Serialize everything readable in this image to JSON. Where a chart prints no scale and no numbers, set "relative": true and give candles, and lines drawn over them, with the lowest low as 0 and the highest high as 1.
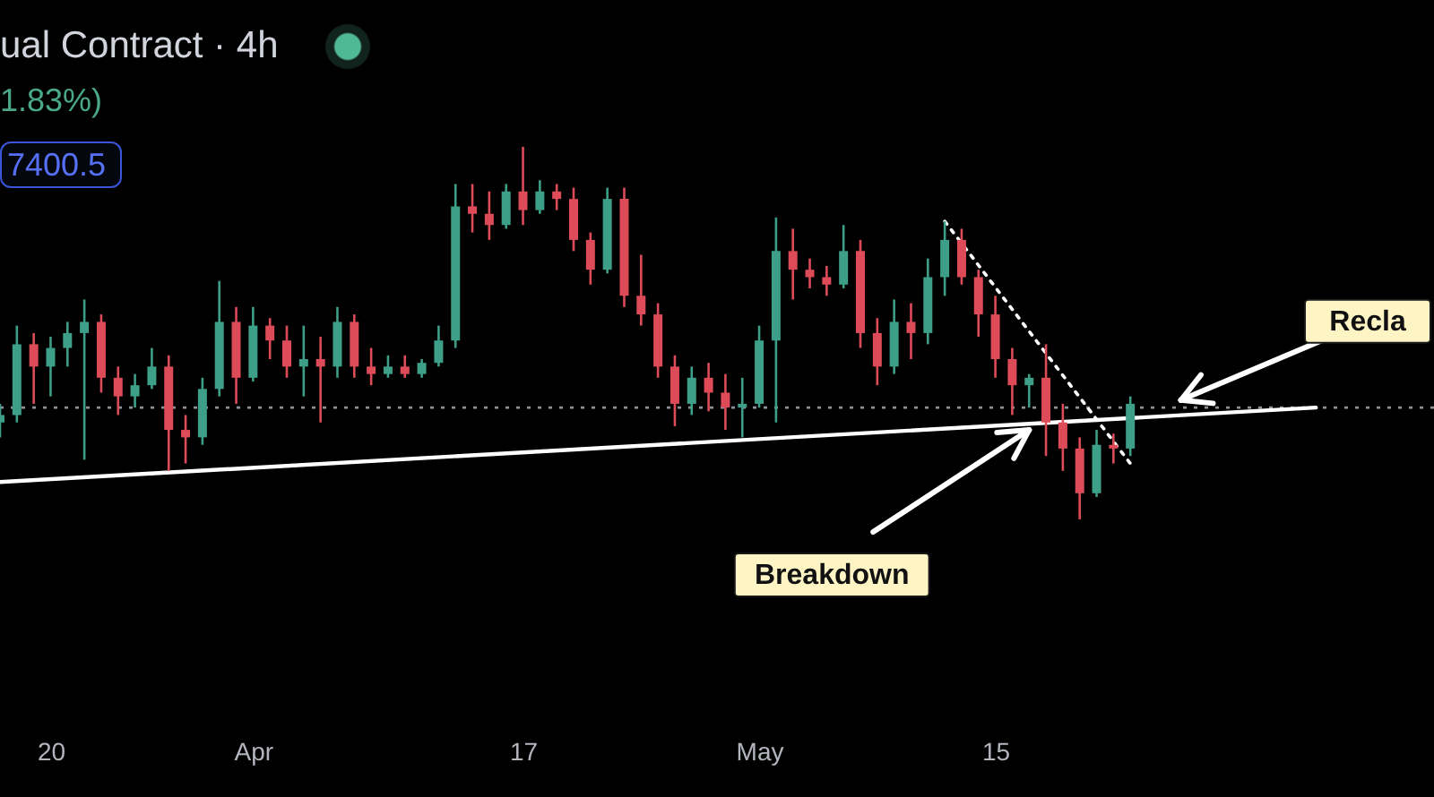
{
  "chart_data": {
    "type": "candlestick",
    "title": "ual Contract · 4h",
    "subtitle": "1.83%)",
    "relative": true,
    "x": [
      "--03-17",
      "--03-18",
      "--03-19",
      "--03-20",
      "--03-21",
      "--03-22",
      "--03-23",
      "--03-24",
      "--03-25",
      "--03-26",
      "--03-27",
      "--03-28",
      "--03-29",
      "--03-30",
      "--03-31",
      "--04-01",
      "--04-02",
      "--04-03",
      "--04-04",
      "--04-05",
      "--04-06",
      "--04-07",
      "--04-08",
      "--04-09",
      "--04-10",
      "--04-11",
      "--04-12",
      "--04-13",
      "--04-14",
      "--04-15",
      "--04-16",
      "--04-17",
      "--04-18",
      "--04-19",
      "--04-20",
      "--04-21",
      "--04-22",
      "--04-23",
      "--04-24",
      "--04-25",
      "--04-26",
      "--04-27",
      "--04-28",
      "--04-29",
      "--04-30",
      "--05-01",
      "--05-02",
      "--05-03",
      "--05-04",
      "--05-05",
      "--05-06",
      "--05-07",
      "--05-08",
      "--05-09",
      "--05-10",
      "--05-11",
      "--05-12",
      "--05-13",
      "--05-14",
      "--05-15",
      "--05-16",
      "--05-17",
      "--05-18",
      "--05-19",
      "--05-20",
      "--05-21",
      "--05-22",
      "--05-23"
    ],
    "ohlc": [
      [
        0.26,
        0.31,
        0.22,
        0.28
      ],
      [
        0.28,
        0.52,
        0.26,
        0.47
      ],
      [
        0.47,
        0.5,
        0.31,
        0.41
      ],
      [
        0.41,
        0.49,
        0.33,
        0.46
      ],
      [
        0.46,
        0.53,
        0.41,
        0.5
      ],
      [
        0.5,
        0.59,
        0.16,
        0.53
      ],
      [
        0.53,
        0.55,
        0.34,
        0.38
      ],
      [
        0.38,
        0.41,
        0.28,
        0.33
      ],
      [
        0.33,
        0.39,
        0.3,
        0.36
      ],
      [
        0.36,
        0.46,
        0.35,
        0.41
      ],
      [
        0.41,
        0.44,
        0.13,
        0.24
      ],
      [
        0.24,
        0.28,
        0.15,
        0.22
      ],
      [
        0.22,
        0.38,
        0.2,
        0.35
      ],
      [
        0.35,
        0.64,
        0.33,
        0.53
      ],
      [
        0.53,
        0.57,
        0.31,
        0.38
      ],
      [
        0.38,
        0.57,
        0.37,
        0.52
      ],
      [
        0.52,
        0.54,
        0.43,
        0.48
      ],
      [
        0.48,
        0.52,
        0.38,
        0.41
      ],
      [
        0.41,
        0.52,
        0.33,
        0.43
      ],
      [
        0.43,
        0.49,
        0.26,
        0.41
      ],
      [
        0.41,
        0.57,
        0.38,
        0.53
      ],
      [
        0.53,
        0.55,
        0.38,
        0.41
      ],
      [
        0.41,
        0.46,
        0.36,
        0.39
      ],
      [
        0.39,
        0.44,
        0.38,
        0.41
      ],
      [
        0.41,
        0.44,
        0.38,
        0.39
      ],
      [
        0.39,
        0.43,
        0.38,
        0.42
      ],
      [
        0.42,
        0.52,
        0.41,
        0.48
      ],
      [
        0.48,
        0.9,
        0.46,
        0.84
      ],
      [
        0.84,
        0.9,
        0.77,
        0.82
      ],
      [
        0.82,
        0.88,
        0.75,
        0.79
      ],
      [
        0.79,
        0.9,
        0.78,
        0.88
      ],
      [
        0.88,
        1.0,
        0.79,
        0.83
      ],
      [
        0.83,
        0.91,
        0.82,
        0.88
      ],
      [
        0.88,
        0.9,
        0.83,
        0.86
      ],
      [
        0.86,
        0.89,
        0.72,
        0.75
      ],
      [
        0.75,
        0.77,
        0.63,
        0.67
      ],
      [
        0.67,
        0.89,
        0.66,
        0.86
      ],
      [
        0.86,
        0.89,
        0.57,
        0.6
      ],
      [
        0.6,
        0.71,
        0.52,
        0.55
      ],
      [
        0.55,
        0.58,
        0.38,
        0.41
      ],
      [
        0.41,
        0.44,
        0.25,
        0.31
      ],
      [
        0.31,
        0.41,
        0.28,
        0.38
      ],
      [
        0.38,
        0.42,
        0.29,
        0.34
      ],
      [
        0.34,
        0.39,
        0.24,
        0.3
      ],
      [
        0.3,
        0.38,
        0.22,
        0.31
      ],
      [
        0.31,
        0.52,
        0.3,
        0.48
      ],
      [
        0.48,
        0.81,
        0.26,
        0.72
      ],
      [
        0.72,
        0.78,
        0.59,
        0.67
      ],
      [
        0.67,
        0.7,
        0.62,
        0.65
      ],
      [
        0.65,
        0.68,
        0.6,
        0.63
      ],
      [
        0.63,
        0.79,
        0.62,
        0.72
      ],
      [
        0.72,
        0.75,
        0.46,
        0.5
      ],
      [
        0.5,
        0.54,
        0.36,
        0.41
      ],
      [
        0.41,
        0.59,
        0.39,
        0.53
      ],
      [
        0.53,
        0.58,
        0.43,
        0.5
      ],
      [
        0.5,
        0.7,
        0.47,
        0.65
      ],
      [
        0.65,
        0.8,
        0.6,
        0.75
      ],
      [
        0.75,
        0.78,
        0.63,
        0.65
      ],
      [
        0.65,
        0.67,
        0.49,
        0.55
      ],
      [
        0.55,
        0.6,
        0.38,
        0.43
      ],
      [
        0.43,
        0.46,
        0.28,
        0.36
      ],
      [
        0.36,
        0.39,
        0.3,
        0.38
      ],
      [
        0.38,
        0.47,
        0.17,
        0.26
      ],
      [
        0.26,
        0.31,
        0.13,
        0.19
      ],
      [
        0.19,
        0.22,
        0.0,
        0.07
      ],
      [
        0.07,
        0.24,
        0.06,
        0.2
      ],
      [
        0.2,
        0.23,
        0.15,
        0.19
      ],
      [
        0.19,
        0.33,
        0.17,
        0.31
      ]
    ],
    "colors": [
      "#3d9f87",
      "#3d9f87",
      "#dd4b58",
      "#3d9f87",
      "#3d9f87",
      "#3d9f87",
      "#dd4b58",
      "#dd4b58",
      "#3d9f87",
      "#3d9f87",
      "#dd4b58",
      "#dd4b58",
      "#3d9f87",
      "#3d9f87",
      "#dd4b58",
      "#3d9f87",
      "#dd4b58",
      "#dd4b58",
      "#3d9f87",
      "#dd4b58",
      "#3d9f87",
      "#dd4b58",
      "#dd4b58",
      "#3d9f87",
      "#dd4b58",
      "#3d9f87",
      "#3d9f87",
      "#3d9f87",
      "#dd4b58",
      "#dd4b58",
      "#3d9f87",
      "#dd4b58",
      "#3d9f87",
      "#dd4b58",
      "#dd4b58",
      "#dd4b58",
      "#3d9f87",
      "#dd4b58",
      "#dd4b58",
      "#dd4b58",
      "#dd4b58",
      "#3d9f87",
      "#dd4b58",
      "#dd4b58",
      "#3d9f87",
      "#3d9f87",
      "#3d9f87",
      "#dd4b58",
      "#dd4b58",
      "#dd4b58",
      "#3d9f87",
      "#dd4b58",
      "#dd4b58",
      "#3d9f87",
      "#dd4b58",
      "#3d9f87",
      "#3d9f87",
      "#dd4b58",
      "#dd4b58",
      "#dd4b58",
      "#dd4b58",
      "#3d9f87",
      "#dd4b58",
      "#dd4b58",
      "#dd4b58",
      "#3d9f87",
      "#dd4b58",
      "#3d9f87"
    ],
    "xlim": [
      "--03-17",
      "--06-10"
    ],
    "xticks": [
      {
        "value": "--03-20",
        "label": "20"
      },
      {
        "value": "--04-01",
        "label": "Apr"
      },
      {
        "value": "--04-17",
        "label": "17"
      },
      {
        "value": "--05-01",
        "label": "May"
      },
      {
        "value": "--05-15",
        "label": "15"
      }
    ],
    "series": [
      {
        "type": "line",
        "x": [
          "--03-17",
          "--06-03"
        ],
        "values": [
          0.1,
          0.3
        ],
        "color": "#ffffff",
        "line_style": "solid"
      },
      {
        "type": "line",
        "x": [
          "--05-12",
          "--05-23"
        ],
        "values": [
          0.8,
          0.15
        ],
        "color": "#ffffff",
        "line_style": "dotted"
      }
    ],
    "ref_lines": [
      {
        "axis": "y",
        "value": 0.3,
        "color": "#8c9098",
        "line_style": "dotted"
      }
    ],
    "annotations": [
      "7400.5",
      {
        "text": "Breakdown",
        "x": "--05-17",
        "y": 0.24
      },
      {
        "text": "Recla",
        "x": "--05-26",
        "y": 0.32
      }
    ]
  }
}
